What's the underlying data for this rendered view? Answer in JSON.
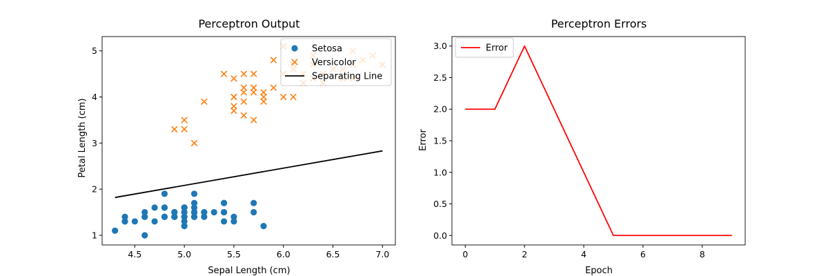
{
  "chart_data": [
    {
      "type": "scatter",
      "title": "Perceptron Output",
      "xlabel": "Sepal Length (cm)",
      "ylabel": "Petal Length (cm)",
      "xlim": [
        4.17,
        7.13
      ],
      "ylim": [
        0.79,
        5.31
      ],
      "xticks": [
        4.5,
        5.0,
        5.5,
        6.0,
        6.5,
        7.0
      ],
      "xtick_labels": [
        "4.5",
        "5.0",
        "5.5",
        "6.0",
        "6.5",
        "7.0"
      ],
      "yticks": [
        1,
        2,
        3,
        4,
        5
      ],
      "ytick_labels": [
        "1",
        "2",
        "3",
        "4",
        "5"
      ],
      "grid": false,
      "legend_position": "top-right",
      "series": [
        {
          "name": "Setosa",
          "kind": "scatter",
          "marker": "circle",
          "color": "#1f77b4",
          "points": [
            [
              5.1,
              1.4
            ],
            [
              4.9,
              1.4
            ],
            [
              4.7,
              1.3
            ],
            [
              4.6,
              1.5
            ],
            [
              5.0,
              1.4
            ],
            [
              5.4,
              1.7
            ],
            [
              4.6,
              1.4
            ],
            [
              5.0,
              1.5
            ],
            [
              4.4,
              1.4
            ],
            [
              4.9,
              1.5
            ],
            [
              5.4,
              1.5
            ],
            [
              4.8,
              1.6
            ],
            [
              4.8,
              1.4
            ],
            [
              4.3,
              1.1
            ],
            [
              5.8,
              1.2
            ],
            [
              5.7,
              1.5
            ],
            [
              5.4,
              1.3
            ],
            [
              5.1,
              1.4
            ],
            [
              5.7,
              1.7
            ],
            [
              5.1,
              1.5
            ],
            [
              5.4,
              1.7
            ],
            [
              5.1,
              1.5
            ],
            [
              4.6,
              1.0
            ],
            [
              5.1,
              1.7
            ],
            [
              4.8,
              1.9
            ],
            [
              5.0,
              1.6
            ],
            [
              5.0,
              1.6
            ],
            [
              5.2,
              1.5
            ],
            [
              5.2,
              1.4
            ],
            [
              4.7,
              1.6
            ],
            [
              4.8,
              1.6
            ],
            [
              5.4,
              1.5
            ],
            [
              5.2,
              1.5
            ],
            [
              5.5,
              1.4
            ],
            [
              4.9,
              1.5
            ],
            [
              5.0,
              1.2
            ],
            [
              5.5,
              1.3
            ],
            [
              4.9,
              1.4
            ],
            [
              4.4,
              1.3
            ],
            [
              5.1,
              1.5
            ],
            [
              5.0,
              1.3
            ],
            [
              4.5,
              1.3
            ],
            [
              4.4,
              1.3
            ],
            [
              5.0,
              1.6
            ],
            [
              5.1,
              1.9
            ],
            [
              4.8,
              1.4
            ],
            [
              5.1,
              1.6
            ],
            [
              4.6,
              1.4
            ],
            [
              5.3,
              1.5
            ],
            [
              5.0,
              1.4
            ]
          ]
        },
        {
          "name": "Versicolor",
          "kind": "scatter",
          "marker": "x",
          "color": "#ff7f0e",
          "points": [
            [
              7.0,
              4.7
            ],
            [
              6.4,
              4.5
            ],
            [
              6.9,
              4.9
            ],
            [
              5.5,
              4.0
            ],
            [
              6.5,
              4.6
            ],
            [
              5.7,
              4.5
            ],
            [
              6.3,
              4.7
            ],
            [
              4.9,
              3.3
            ],
            [
              6.6,
              4.6
            ],
            [
              5.2,
              3.9
            ],
            [
              5.0,
              3.5
            ],
            [
              5.9,
              4.2
            ],
            [
              6.0,
              4.0
            ],
            [
              6.1,
              4.7
            ],
            [
              5.6,
              3.6
            ],
            [
              6.7,
              4.4
            ],
            [
              5.6,
              4.5
            ],
            [
              5.8,
              4.1
            ],
            [
              6.2,
              4.5
            ],
            [
              5.6,
              3.9
            ],
            [
              5.9,
              4.8
            ],
            [
              6.1,
              4.0
            ],
            [
              6.3,
              4.9
            ],
            [
              6.1,
              4.7
            ],
            [
              6.4,
              4.3
            ],
            [
              6.6,
              4.4
            ],
            [
              6.8,
              4.8
            ],
            [
              6.7,
              5.0
            ],
            [
              6.0,
              4.5
            ],
            [
              5.7,
              3.5
            ],
            [
              5.5,
              3.8
            ],
            [
              5.5,
              3.7
            ],
            [
              5.8,
              3.9
            ],
            [
              6.0,
              5.1
            ],
            [
              5.4,
              4.5
            ],
            [
              6.0,
              4.5
            ],
            [
              6.7,
              4.7
            ],
            [
              6.3,
              4.4
            ],
            [
              5.6,
              4.1
            ],
            [
              5.5,
              4.0
            ],
            [
              5.5,
              4.4
            ],
            [
              6.1,
              4.6
            ],
            [
              5.8,
              4.0
            ],
            [
              5.0,
              3.3
            ],
            [
              5.6,
              4.2
            ],
            [
              5.7,
              4.2
            ],
            [
              5.7,
              4.2
            ],
            [
              6.2,
              4.3
            ],
            [
              5.1,
              3.0
            ],
            [
              5.7,
              4.1
            ]
          ]
        },
        {
          "name": "Separating Line",
          "kind": "line",
          "color": "#000000",
          "points": [
            [
              4.3,
              1.82
            ],
            [
              7.0,
              2.83
            ]
          ]
        }
      ]
    },
    {
      "type": "line",
      "title": "Perceptron Errors",
      "xlabel": "Epoch",
      "ylabel": "Error",
      "xlim": [
        -0.45,
        9.45
      ],
      "ylim": [
        -0.15,
        3.15
      ],
      "xticks": [
        0,
        2,
        4,
        6,
        8
      ],
      "xtick_labels": [
        "0",
        "2",
        "4",
        "6",
        "8"
      ],
      "yticks": [
        0,
        0.5,
        1.0,
        1.5,
        2.0,
        2.5,
        3.0
      ],
      "ytick_labels": [
        "0.0",
        "0.5",
        "1.0",
        "1.5",
        "2.0",
        "2.5",
        "3.0"
      ],
      "grid": false,
      "legend_position": "top-left",
      "series": [
        {
          "name": "Error",
          "kind": "line",
          "color": "#ff0000",
          "x": [
            0,
            1,
            2,
            3,
            4,
            5,
            6,
            7,
            8,
            9
          ],
          "values": [
            2,
            2,
            3,
            2,
            1,
            0,
            0,
            0,
            0,
            0
          ]
        }
      ]
    }
  ]
}
